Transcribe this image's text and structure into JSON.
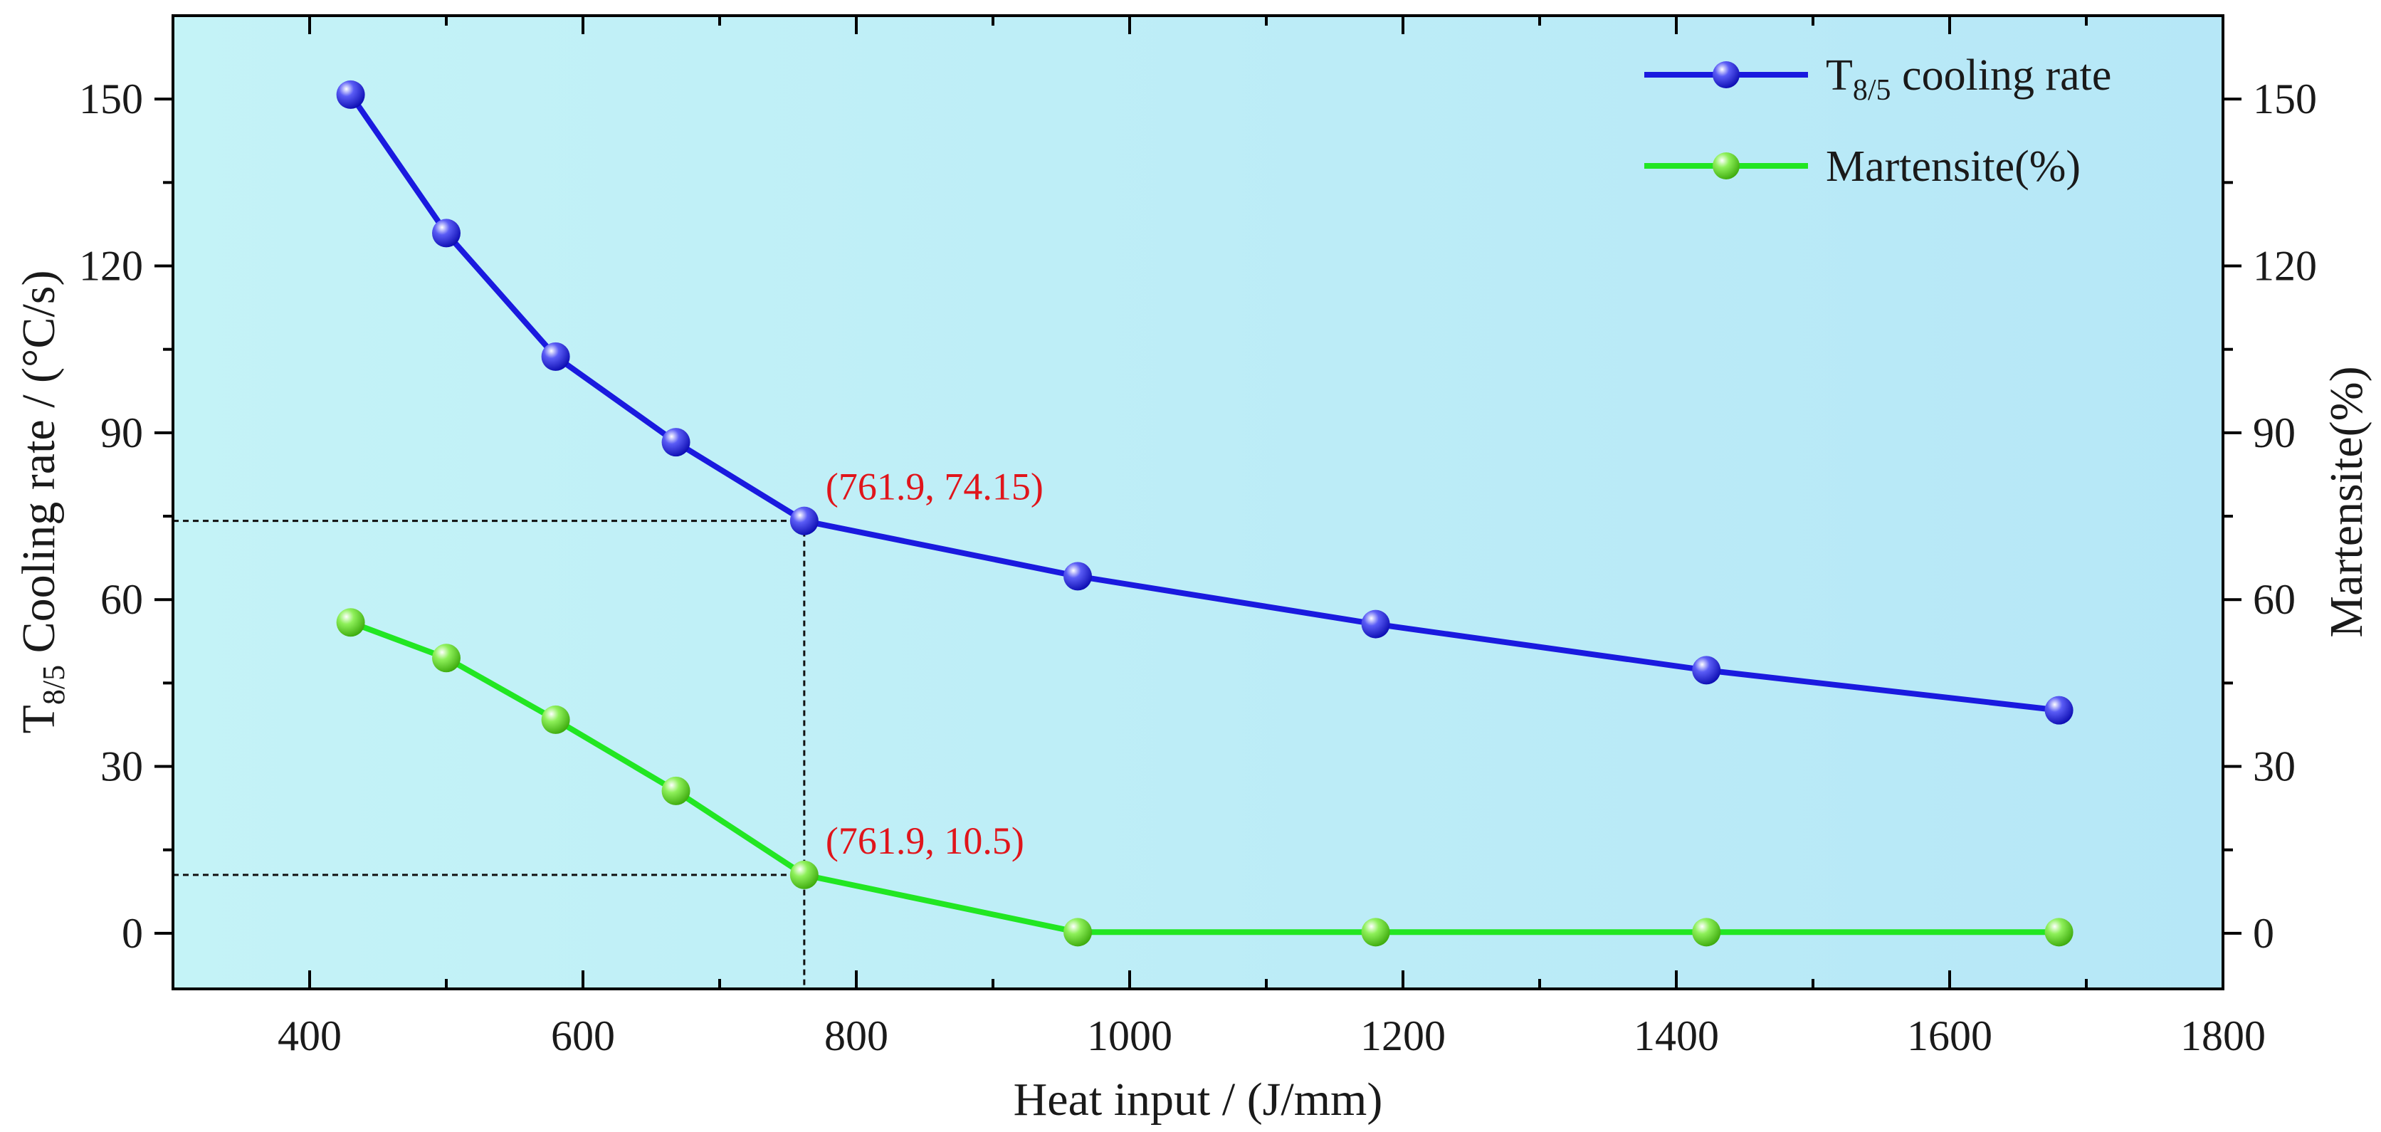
{
  "chart_data": {
    "type": "line",
    "title": "",
    "xlabel": "Heat input / (J/mm)",
    "ylabel": {
      "main": "T",
      "sub": "8/5",
      "rest": " Cooling rate / (°C/s)"
    },
    "y2label": "Martensite(%)",
    "xlim": [
      300,
      1800
    ],
    "ylim": [
      -10,
      165
    ],
    "y2lim": [
      -10,
      165
    ],
    "xticks": [
      400,
      600,
      800,
      1000,
      1200,
      1400,
      1600,
      1800
    ],
    "yticks": [
      0,
      30,
      60,
      90,
      120,
      150
    ],
    "y2ticks": [
      0,
      30,
      60,
      90,
      120,
      150
    ],
    "grid": false,
    "legend_position": "top-right",
    "series": [
      {
        "name": "T8/5 cooling rate",
        "legend": {
          "main": "T",
          "sub": "8/5",
          "rest": " cooling rate"
        },
        "color": "#1a1adf",
        "x": [
          430,
          500,
          580,
          668,
          761.9,
          962,
          1180,
          1422,
          1680
        ],
        "values": [
          150.8,
          125.9,
          103.7,
          88.3,
          74.15,
          64.2,
          55.6,
          47.3,
          40.1
        ]
      },
      {
        "name": "Martensite(%)",
        "legend": {
          "main": "Martensite(%)",
          "sub": "",
          "rest": ""
        },
        "color": "#22e622",
        "x": [
          430,
          500,
          580,
          668,
          761.9,
          962,
          1180,
          1422,
          1680
        ],
        "values": [
          55.9,
          49.5,
          38.4,
          25.6,
          10.5,
          0.2,
          0.2,
          0.2,
          0.2
        ]
      }
    ],
    "annotations": [
      {
        "text": "(761.9, 74.15)",
        "x": 761.9,
        "y": 74.15,
        "series": 0
      },
      {
        "text": "(761.9, 10.5)",
        "x": 761.9,
        "y": 10.5,
        "series": 1
      }
    ],
    "colors": {
      "background_left": "#c4f3f7",
      "background_right": "#b6e7f7",
      "annotation": "#e0151b",
      "reference_line": "#111111"
    }
  }
}
